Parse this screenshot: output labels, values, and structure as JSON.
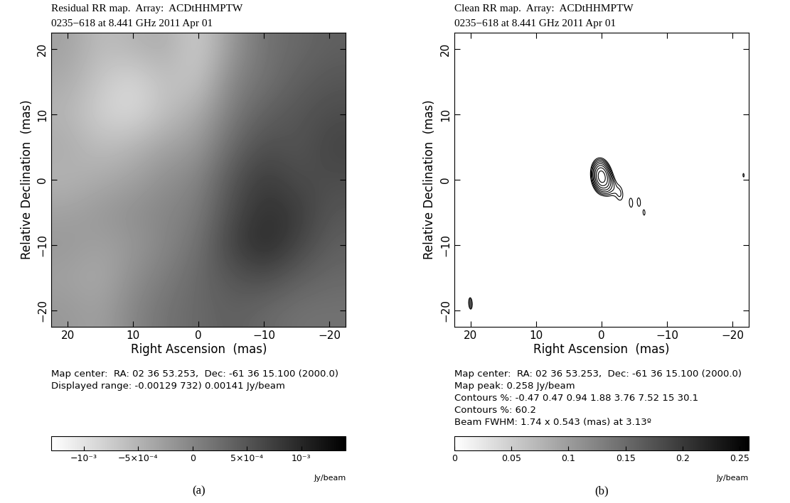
{
  "chart_data": [
    {
      "type": "heatmap",
      "label": "(a)",
      "title": "Residual RR map.  Array:  ACDtHHMPTW",
      "subtitle": "0235−618 at 8.441 GHz 2011 Apr 01",
      "x_label": "Right Ascension  (mas)",
      "y_label": "Relative Declination  (mas)",
      "xlim": [
        22.5,
        -22.5
      ],
      "ylim": [
        -22.5,
        22.5
      ],
      "xticks": [
        20,
        10,
        0,
        {
          "value": -10,
          "label": "−10"
        },
        {
          "value": -20,
          "label": "−20"
        }
      ],
      "yticks": [
        {
          "value": -20,
          "label": "−20"
        },
        {
          "value": -10,
          "label": "−10"
        },
        0,
        10,
        20
      ],
      "notes": [
        "Map center:  RA: 02 36 53.253,  Dec: -61 36 15.100 (2000.0)",
        "Displayed range: -0.00129 732) 0.00141 Jy/beam"
      ],
      "x": [
        20,
        15,
        10,
        5,
        0,
        -5,
        -10,
        -15,
        -20
      ],
      "y": [
        20,
        15,
        10,
        5,
        0,
        -5,
        -10,
        -15,
        -20
      ],
      "cells": [
        [
          -0.0003,
          -0.0006,
          -0.0005,
          -0.0004,
          -0.0008,
          -0.0002,
          0.0002,
          0.0003,
          0.0004
        ],
        [
          -0.0004,
          -0.0007,
          -0.0009,
          -0.0006,
          -0.0007,
          0.0,
          0.0002,
          0.0004,
          0.0005
        ],
        [
          -0.0005,
          -0.0008,
          -0.0009,
          -0.0006,
          -0.0004,
          0.0001,
          0.0004,
          0.0005,
          0.0006
        ],
        [
          -0.0004,
          -0.0006,
          -0.0005,
          -0.0003,
          -0.0002,
          0.0003,
          0.0006,
          0.0005,
          0.0007
        ],
        [
          -0.0005,
          -0.0004,
          -0.0003,
          -0.0001,
          0.0,
          0.0005,
          0.0008,
          0.0006,
          0.0006
        ],
        [
          -0.0003,
          -0.0002,
          -0.0001,
          0.0,
          0.0001,
          0.0006,
          0.0009,
          0.0008,
          0.0005
        ],
        [
          -0.0002,
          -0.0003,
          -0.0002,
          0.0,
          0.0002,
          0.0007,
          0.001,
          0.0007,
          0.0004
        ],
        [
          -0.0003,
          -0.0004,
          -0.0001,
          0.0001,
          0.0003,
          0.0005,
          0.0006,
          0.0004,
          0.0003
        ],
        [
          -0.0002,
          -0.0003,
          0.0,
          0.0002,
          0.0003,
          0.0004,
          0.0003,
          0.0002,
          0.0002
        ]
      ],
      "colorbar": {
        "range": [
          -0.00129732,
          0.00141
        ],
        "ticks": [
          {
            "value": -0.001,
            "label": "−10⁻³"
          },
          {
            "value": -0.0005,
            "label": "−5×10⁻⁴"
          },
          0,
          {
            "value": 0.0005,
            "label": "5×10⁻⁴"
          },
          {
            "value": 0.001,
            "label": "10⁻³"
          }
        ],
        "label": "Jy/beam"
      }
    },
    {
      "type": "contour",
      "label": "(b)",
      "title": "Clean RR map.  Array:  ACDtHHMPTW",
      "subtitle": "0235−618 at 8.441 GHz 2011 Apr 01",
      "x_label": "Right Ascension  (mas)",
      "y_label": "Relative Declination  (mas)",
      "xlim": [
        22.5,
        -22.5
      ],
      "ylim": [
        -22.5,
        22.5
      ],
      "xticks": [
        20,
        10,
        0,
        {
          "value": -10,
          "label": "−10"
        },
        {
          "value": -20,
          "label": "−20"
        }
      ],
      "yticks": [
        {
          "value": -20,
          "label": "−20"
        },
        {
          "value": -10,
          "label": "−10"
        },
        0,
        10,
        20
      ],
      "notes": [
        "Map center:  RA: 02 36 53.253,  Dec: -61 36 15.100 (2000.0)",
        "Map peak: 0.258 Jy/beam",
        "Contours %: -0.47 0.47 0.94 1.88 3.76 7.52 15 30.1",
        "Contours %: 60.2",
        "Beam FWHM: 1.74 x 0.543 (mas) at 3.13º"
      ],
      "map_peak": 0.258,
      "contour_levels_percent": [
        -0.47,
        0.47,
        0.94,
        1.88,
        3.76,
        7.52,
        15,
        30.1,
        60.2
      ],
      "components": [
        {
          "x": 0.0,
          "y": 0.5,
          "peak": 0.25,
          "major": 1.2,
          "minor": 1.0,
          "pa": 40
        },
        {
          "x": -0.8,
          "y": -0.3,
          "peak": 0.03,
          "major": 1.0,
          "minor": 0.8,
          "pa": 40
        },
        {
          "x": -1.7,
          "y": -1.0,
          "peak": 0.004,
          "major": 1.0,
          "minor": 0.6,
          "pa": 40
        },
        {
          "x": -2.7,
          "y": -2.0,
          "peak": 0.003,
          "major": 1.0,
          "minor": 0.6,
          "pa": 40
        },
        {
          "x": -4.5,
          "y": -3.5,
          "peak": 0.0018,
          "major": 0.6,
          "minor": 0.4,
          "pa": 0
        },
        {
          "x": -5.7,
          "y": -3.4,
          "peak": 0.0017,
          "major": 0.6,
          "minor": 0.4,
          "pa": 0
        },
        {
          "x": -6.5,
          "y": -5.0,
          "peak": 0.0014,
          "major": 0.4,
          "minor": 0.3,
          "pa": 0
        },
        {
          "x": -21.7,
          "y": 0.7,
          "peak": 0.0013,
          "major": 0.3,
          "minor": 0.2,
          "pa": 0
        }
      ],
      "beam": {
        "major": 1.74,
        "minor": 0.543,
        "pa": 3.13
      },
      "colorbar": {
        "range": [
          0,
          0.258
        ],
        "ticks": [
          0,
          0.05,
          0.1,
          0.15,
          0.2,
          0.25
        ],
        "label": "Jy/beam"
      }
    }
  ]
}
